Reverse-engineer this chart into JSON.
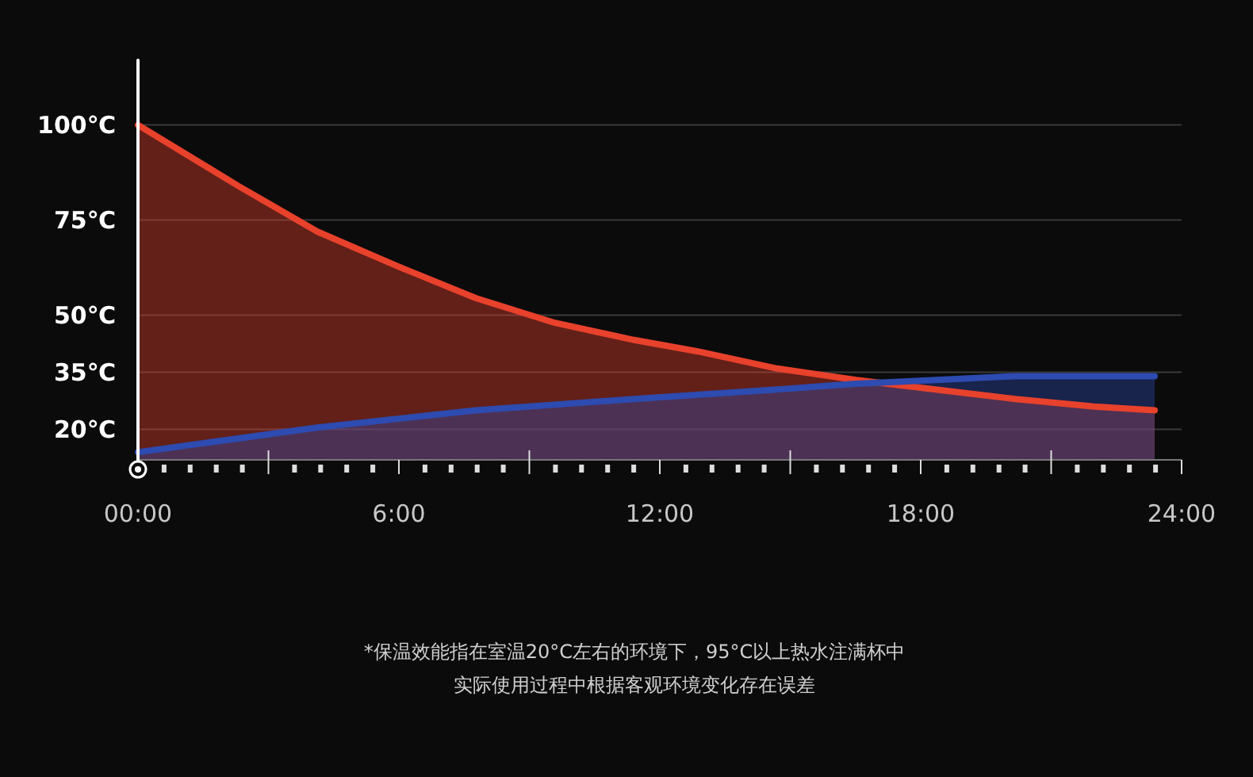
{
  "chart_data": {
    "type": "area",
    "x": [
      0,
      2.3,
      4.12,
      5.94,
      7.77,
      9.59,
      11.41,
      12.87,
      14.7,
      16.52,
      18.34,
      20.17,
      21.99,
      23.38
    ],
    "series": [
      {
        "color": "#e8412c",
        "values": [
          100,
          84,
          72,
          63,
          54.5,
          48,
          43.5,
          40.5,
          36,
          33,
          30.5,
          28,
          26,
          25
        ]
      },
      {
        "color": "#2d4bb0",
        "x": [
          0,
          4.12,
          7.77,
          11.41,
          14.7,
          16.52,
          18.34,
          20.17,
          21.99,
          23.38
        ],
        "values": [
          14,
          20.5,
          25,
          28,
          30.5,
          32,
          33,
          34,
          34,
          34
        ]
      }
    ],
    "xlim": [
      0,
      24
    ],
    "xticks": [
      {
        "value": 0,
        "label": "00:00"
      },
      {
        "value": 6,
        "label": "6:00"
      },
      {
        "value": 12,
        "label": "12:00"
      },
      {
        "value": 18,
        "label": "18:00"
      },
      {
        "value": 24,
        "label": "24:00"
      }
    ],
    "ylim": [
      12,
      117
    ],
    "yticks": [
      {
        "value": 100,
        "label": "100℃"
      },
      {
        "value": 75,
        "label": "75℃"
      },
      {
        "value": 50,
        "label": "50℃"
      },
      {
        "value": 35,
        "label": "35℃"
      },
      {
        "value": 20,
        "label": "20℃"
      }
    ],
    "grid": "y",
    "annotations": [
      "*保温效能指在室温20°C左右的环境下，95°C以上热水注满杯中",
      "实际使用过程中根据客观环境变化存在误差"
    ]
  }
}
